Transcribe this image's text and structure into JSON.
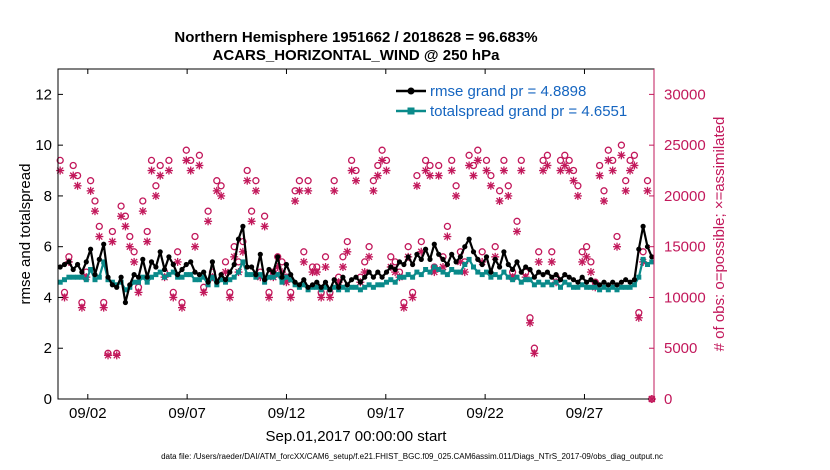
{
  "chart_data": {
    "type": "line",
    "title_line1": "Northern Hemisphere 1951662 / 2018628 = 96.683%",
    "title_line2": "ACARS_HORIZONTAL_WIND @ 250 hPa",
    "ylabel": "rmse and totalspread",
    "y2label": "# of obs: o=possible; ×=assimilated",
    "xlabel": "Sep.01,2017 00:00:00 start",
    "footer": "data file: /Users/raeder/DAI/ATM_forcXX/CAM6_setup/f.e21.FHIST_BGC.f09_025.CAM6assim.011/Diags_NTrS_2017-09/obs_diag_output.nc",
    "xlim": [
      0.5,
      30.5
    ],
    "ylim": [
      0,
      13
    ],
    "y2lim": [
      0,
      32500
    ],
    "xticks": [
      {
        "x": 2,
        "label": "09/02"
      },
      {
        "x": 7,
        "label": "09/07"
      },
      {
        "x": 12,
        "label": "09/12"
      },
      {
        "x": 17,
        "label": "09/17"
      },
      {
        "x": 22,
        "label": "09/22"
      },
      {
        "x": 27,
        "label": "09/27"
      }
    ],
    "yticks": [
      {
        "v": 0,
        "label": "0"
      },
      {
        "v": 2,
        "label": "2"
      },
      {
        "v": 4,
        "label": "4"
      },
      {
        "v": 6,
        "label": "6"
      },
      {
        "v": 8,
        "label": "8"
      },
      {
        "v": 10,
        "label": "10"
      },
      {
        "v": 12,
        "label": "12"
      }
    ],
    "y2ticks": [
      {
        "v": 0,
        "label": "0"
      },
      {
        "v": 5000,
        "label": "5000"
      },
      {
        "v": 10000,
        "label": "10000"
      },
      {
        "v": 15000,
        "label": "15000"
      },
      {
        "v": 20000,
        "label": "20000"
      },
      {
        "v": 25000,
        "label": "25000"
      },
      {
        "v": 30000,
        "label": "30000"
      }
    ],
    "legend_position": "top-right",
    "series": [
      {
        "name": "rmse grand pr = 4.8898",
        "color": "#000000",
        "values": [
          5.2,
          5.3,
          5.4,
          5.1,
          5.3,
          5.0,
          5.4,
          5.9,
          4.9,
          5.5,
          6.1,
          4.8,
          4.5,
          4.4,
          4.8,
          3.8,
          4.5,
          4.9,
          4.8,
          5.5,
          4.8,
          5.4,
          5.2,
          5.8,
          5.1,
          5.6,
          5.3,
          4.9,
          5.1,
          5.3,
          5.4,
          5.0,
          4.9,
          5.0,
          4.6,
          5.4,
          4.6,
          4.9,
          4.7,
          5.0,
          5.3,
          6.3,
          6.8,
          5.2,
          5.2,
          4.9,
          5.7,
          4.7,
          5.1,
          5.0,
          5.6,
          4.8,
          5.3,
          4.9,
          4.6,
          4.5,
          4.7,
          4.4,
          4.5,
          4.6,
          4.4,
          4.6,
          4.3,
          4.7,
          4.4,
          4.8,
          4.5,
          4.7,
          4.8,
          4.6,
          4.8,
          5.0,
          4.8,
          5.0,
          4.8,
          5.0,
          5.2,
          5.1,
          5.4,
          5.3,
          5.6,
          5.3,
          5.7,
          5.5,
          5.9,
          5.5,
          6.1,
          5.7,
          5.5,
          5.3,
          5.7,
          5.4,
          5.6,
          6.0,
          6.3,
          5.8,
          5.5,
          5.3,
          5.6,
          5.0,
          5.5,
          5.2,
          5.8,
          5.3,
          5.1,
          5.4,
          5.0,
          5.2,
          5.1,
          4.8,
          5.0,
          4.9,
          5.0,
          4.8,
          4.9,
          4.7,
          4.9,
          4.8,
          4.7,
          4.6,
          4.8,
          4.6,
          4.7,
          4.6,
          4.5,
          4.6,
          4.5,
          4.6,
          4.5,
          4.6,
          4.7,
          4.6,
          4.7,
          5.9,
          6.8,
          6.0,
          5.6
        ]
      },
      {
        "name": "totalspread grand pr = 4.6551",
        "color": "#0a8a8a",
        "values": [
          4.6,
          4.7,
          4.8,
          4.8,
          4.8,
          4.8,
          4.7,
          5.1,
          4.7,
          4.8,
          5.4,
          4.7,
          4.6,
          4.5,
          4.6,
          4.3,
          4.4,
          4.6,
          4.6,
          4.8,
          4.6,
          4.8,
          4.9,
          5.0,
          4.8,
          4.9,
          5.0,
          4.8,
          4.8,
          4.9,
          4.9,
          4.7,
          4.7,
          4.8,
          4.5,
          4.8,
          4.5,
          4.7,
          4.6,
          4.7,
          4.8,
          5.0,
          5.4,
          4.9,
          4.9,
          4.8,
          4.9,
          4.6,
          4.8,
          4.8,
          4.9,
          4.6,
          4.8,
          4.7,
          4.5,
          4.4,
          4.5,
          4.3,
          4.4,
          4.4,
          4.3,
          4.4,
          4.3,
          4.4,
          4.3,
          4.4,
          4.3,
          4.4,
          4.4,
          4.3,
          4.4,
          4.5,
          4.4,
          4.5,
          4.5,
          4.6,
          4.7,
          4.6,
          4.8,
          4.8,
          4.9,
          4.8,
          5.0,
          4.9,
          5.1,
          5.0,
          5.2,
          5.1,
          5.0,
          4.9,
          5.1,
          5.0,
          5.0,
          5.3,
          5.5,
          5.2,
          5.0,
          4.9,
          5.0,
          4.8,
          4.9,
          4.8,
          5.0,
          4.8,
          4.7,
          4.8,
          4.6,
          4.7,
          4.7,
          4.5,
          4.6,
          4.5,
          4.6,
          4.5,
          4.6,
          4.4,
          4.6,
          4.5,
          4.4,
          4.4,
          4.5,
          4.4,
          4.4,
          4.4,
          4.3,
          4.4,
          4.3,
          4.4,
          4.3,
          4.4,
          4.4,
          4.4,
          4.5,
          4.8,
          5.5,
          5.3,
          5.4
        ]
      },
      {
        "name": "possible",
        "color": "#c2185b",
        "values": [
          23500,
          10500,
          14000,
          23000,
          22000,
          9500,
          12500,
          21500,
          19500,
          17000,
          9500,
          4500,
          16500,
          4500,
          19000,
          18000,
          16000,
          14500,
          11000,
          19500,
          16500,
          23500,
          21000,
          23000,
          12500,
          23500,
          10500,
          14500,
          9500,
          24500,
          23500,
          16000,
          24000,
          11000,
          18500,
          12500,
          21500,
          21000,
          13500,
          10500,
          15000,
          13500,
          15500,
          22500,
          18500,
          21500,
          12500,
          18000,
          10500,
          12500,
          14000,
          13500,
          12000,
          10500,
          20500,
          21500,
          14500,
          21500,
          13000,
          13000,
          10500,
          14000,
          10500,
          21500,
          12000,
          14000,
          15500,
          23500,
          22500,
          12000,
          13500,
          15000,
          21500,
          23000,
          24500,
          23500,
          14000,
          13500,
          12500,
          9500,
          15000,
          10500,
          22000,
          15500,
          23500,
          23000,
          13000,
          23000,
          14000,
          17000,
          23500,
          21000,
          14500,
          13500,
          24000,
          23000,
          24500,
          14500,
          23500,
          22000,
          15000,
          20500,
          23500,
          21000,
          12500,
          17500,
          23500,
          12500,
          8000,
          5000,
          14500,
          23500,
          24000,
          14500,
          12000,
          23500,
          24000,
          23500,
          22500,
          21000,
          14500,
          15000,
          13500,
          11500,
          23000,
          20500,
          24500,
          23500,
          16000,
          25000,
          21500,
          23500,
          24000,
          8500,
          14500,
          21500,
          0
        ]
      },
      {
        "name": "assimilated",
        "color": "#c2185b",
        "values": [
          22500,
          10000,
          13500,
          22000,
          21000,
          9000,
          12000,
          20500,
          18500,
          16000,
          9000,
          4300,
          15500,
          4300,
          18000,
          17000,
          15000,
          13500,
          10500,
          18500,
          15500,
          22500,
          20000,
          22000,
          12000,
          22500,
          10000,
          13500,
          9000,
          23500,
          22500,
          15000,
          23000,
          10500,
          17500,
          12000,
          20500,
          20000,
          12500,
          10000,
          14000,
          12500,
          14500,
          21500,
          17500,
          20500,
          12000,
          17000,
          10000,
          12000,
          13000,
          12500,
          11500,
          10000,
          19500,
          20500,
          13500,
          20500,
          12500,
          12500,
          10000,
          13000,
          10000,
          20500,
          11500,
          13000,
          14500,
          22500,
          21500,
          11500,
          12500,
          14000,
          20500,
          22000,
          23500,
          22500,
          13000,
          12500,
          12000,
          9000,
          14000,
          10000,
          21000,
          14500,
          22500,
          22000,
          12500,
          22000,
          13000,
          16000,
          22500,
          20000,
          13500,
          12500,
          23000,
          22000,
          23500,
          13500,
          22500,
          21000,
          14000,
          19500,
          22500,
          20000,
          12000,
          16500,
          22500,
          12000,
          7500,
          4500,
          13500,
          22500,
          23000,
          13500,
          11500,
          22500,
          23000,
          22500,
          21500,
          20000,
          13500,
          14000,
          12500,
          11000,
          22000,
          19500,
          23500,
          22500,
          15000,
          24000,
          20500,
          22500,
          23000,
          8000,
          13500,
          20500,
          0
        ]
      }
    ]
  }
}
